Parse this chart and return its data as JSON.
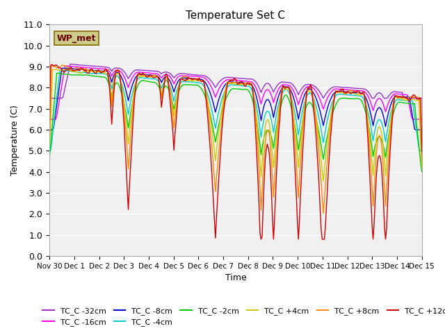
{
  "title": "Temperature Set C",
  "xlabel": "Time",
  "ylabel": "Temperature (C)",
  "ylim": [
    0.0,
    11.0
  ],
  "yticks": [
    0.0,
    1.0,
    2.0,
    3.0,
    4.0,
    5.0,
    6.0,
    7.0,
    8.0,
    9.0,
    10.0,
    11.0
  ],
  "xtick_labels": [
    "Nov 30",
    "Dec 1",
    "Dec 2",
    "Dec 3",
    "Dec 4",
    "Dec 5",
    "Dec 6",
    "Dec 7",
    "Dec 8",
    "Dec 9",
    "Dec 10",
    "Dec 11",
    "Dec 12",
    "Dec 13",
    "Dec 14",
    "Dec 15"
  ],
  "xtick_positions": [
    0,
    1,
    2,
    3,
    4,
    5,
    6,
    7,
    8,
    9,
    10,
    11,
    12,
    13,
    14,
    15
  ],
  "series_colors": {
    "TC_C -32cm": "#9933CC",
    "TC_C -16cm": "#FF00FF",
    "TC_C -8cm": "#0000CC",
    "TC_C -4cm": "#00CCCC",
    "TC_C -2cm": "#00CC00",
    "TC_C +4cm": "#CCCC00",
    "TC_C +8cm": "#FF8800",
    "TC_C +12cm": "#CC0000"
  },
  "wp_met_box_color": "#CCCC88",
  "wp_met_text_color": "#660000",
  "plot_bg_color": "#F0F0F0"
}
